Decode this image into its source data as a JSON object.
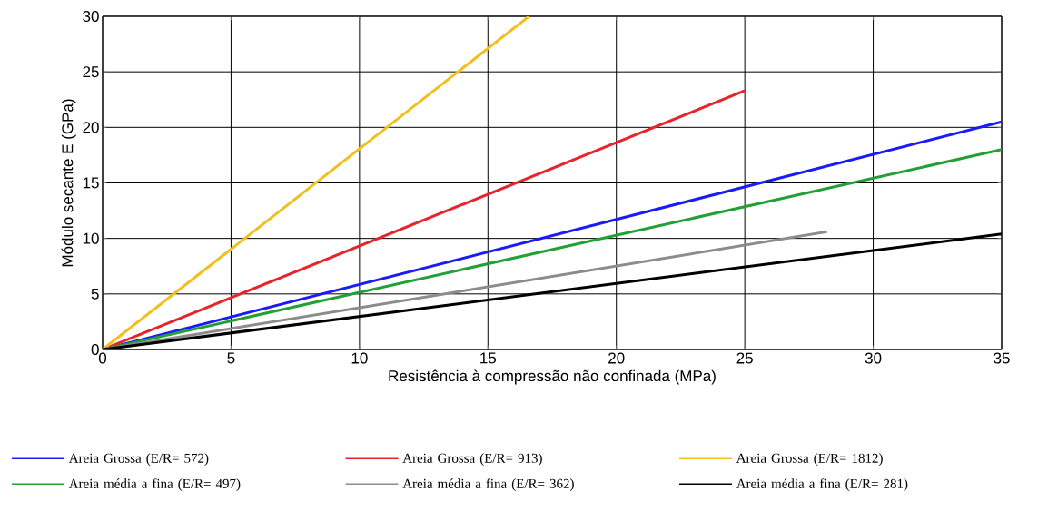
{
  "chart_data": {
    "type": "line",
    "xlabel": "Resistência à compressão não confinada (MPa)",
    "ylabel": "Módulo secante E (GPa)",
    "xlim": [
      0,
      35
    ],
    "ylim": [
      0,
      30
    ],
    "xticks": [
      0,
      5,
      10,
      15,
      20,
      25,
      30,
      35
    ],
    "yticks": [
      0,
      5,
      10,
      15,
      20,
      25,
      30
    ],
    "grid": true,
    "legend": "bottom",
    "marker": "none",
    "line_style": "solid",
    "series": [
      {
        "name": "Areia Grossa (E/R= 572)",
        "color": "#1a1aff",
        "x": [
          0,
          35
        ],
        "values": [
          0,
          20.5
        ]
      },
      {
        "name": "Areia Grossa (E/R= 913)",
        "color": "#e8232a",
        "x": [
          0,
          25
        ],
        "values": [
          0,
          23.3
        ]
      },
      {
        "name": "Areia Grossa (E/R= 1812)",
        "color": "#f0c020",
        "x": [
          0,
          16.6
        ],
        "values": [
          0,
          30
        ]
      },
      {
        "name": "Areia média a fina (E/R= 497)",
        "color": "#22a035",
        "x": [
          0,
          35
        ],
        "values": [
          0,
          18
        ]
      },
      {
        "name": "Areia média a fina (E/R= 362)",
        "color": "#8c8c8c",
        "x": [
          0,
          28.2
        ],
        "values": [
          0,
          10.6
        ]
      },
      {
        "name": "Areia média a fina (E/R= 281)",
        "color": "#000000",
        "x": [
          0,
          35
        ],
        "values": [
          0,
          10.4
        ]
      }
    ]
  }
}
